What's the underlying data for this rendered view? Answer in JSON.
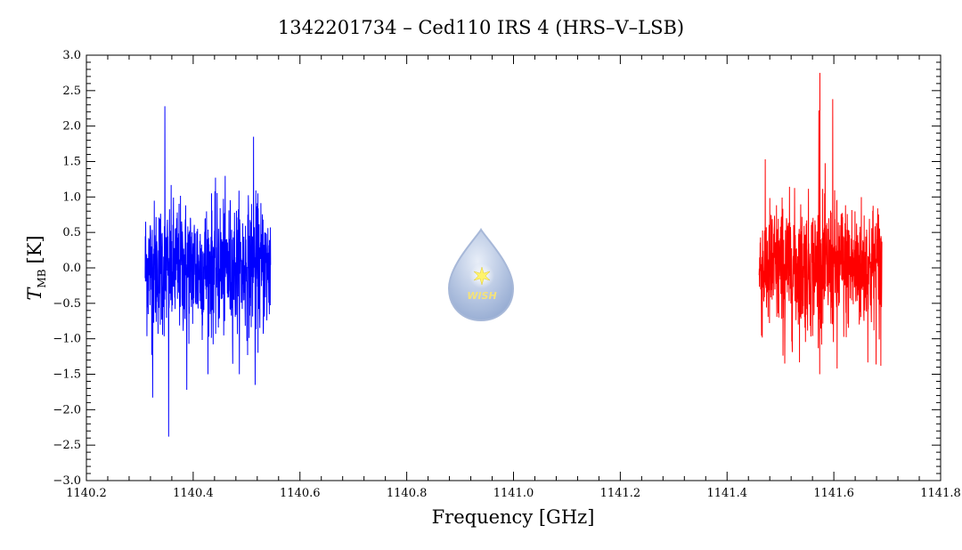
{
  "chart_data": {
    "type": "line",
    "title": "1342201734 – Ced110 IRS 4 (HRS–V–LSB)",
    "xlabel": "Frequency [GHz]",
    "ylabel_main": "T",
    "ylabel_sub": "MB",
    "ylabel_unit": "[K]",
    "xlim": [
      1140.2,
      1141.8
    ],
    "ylim": [
      -3.0,
      3.0
    ],
    "x_ticks": [
      {
        "value": 1140.2,
        "label": "1140.2"
      },
      {
        "value": 1140.4,
        "label": "1140.4"
      },
      {
        "value": 1140.6,
        "label": "1140.6"
      },
      {
        "value": 1140.8,
        "label": "1140.8"
      },
      {
        "value": 1141.0,
        "label": "1141.0"
      },
      {
        "value": 1141.2,
        "label": "1141.2"
      },
      {
        "value": 1141.4,
        "label": "1141.4"
      },
      {
        "value": 1141.6,
        "label": "1141.6"
      },
      {
        "value": 1141.8,
        "label": "1141.8"
      }
    ],
    "y_ticks": [
      {
        "value": 3.0,
        "label": "3.0"
      },
      {
        "value": 2.5,
        "label": "2.5"
      },
      {
        "value": 2.0,
        "label": "2.0"
      },
      {
        "value": 1.5,
        "label": "1.5"
      },
      {
        "value": 1.0,
        "label": "1.0"
      },
      {
        "value": 0.5,
        "label": "0.5"
      },
      {
        "value": 0.0,
        "label": "0.0"
      },
      {
        "value": -0.5,
        "label": "−0.5"
      },
      {
        "value": -1.0,
        "label": "−1.0"
      },
      {
        "value": -1.5,
        "label": "−1.5"
      },
      {
        "value": -2.0,
        "label": "−2.0"
      },
      {
        "value": -2.5,
        "label": "−2.5"
      },
      {
        "value": -3.0,
        "label": "−3.0"
      }
    ],
    "series": [
      {
        "color": "#0000ff",
        "x_range": [
          1140.31,
          1140.545
        ],
        "noise_std": 0.55,
        "extremes": [
          {
            "x": 1140.347,
            "y": 2.28
          },
          {
            "x": 1140.354,
            "y": -2.38
          },
          {
            "x": 1140.324,
            "y": -1.83
          },
          {
            "x": 1140.513,
            "y": 1.85
          },
          {
            "x": 1140.516,
            "y": -1.65
          },
          {
            "x": 1140.388,
            "y": -1.72
          }
        ]
      },
      {
        "color": "#ff0000",
        "x_range": [
          1141.46,
          1141.69
        ],
        "noise_std": 0.55,
        "extremes": [
          {
            "x": 1141.574,
            "y": 2.75
          },
          {
            "x": 1141.572,
            "y": 2.22
          },
          {
            "x": 1141.598,
            "y": 2.38
          },
          {
            "x": 1141.606,
            "y": -1.42
          },
          {
            "x": 1141.508,
            "y": -1.35
          },
          {
            "x": 1141.688,
            "y": -1.38
          }
        ]
      }
    ],
    "grid": false,
    "logo_text": "WISH"
  }
}
